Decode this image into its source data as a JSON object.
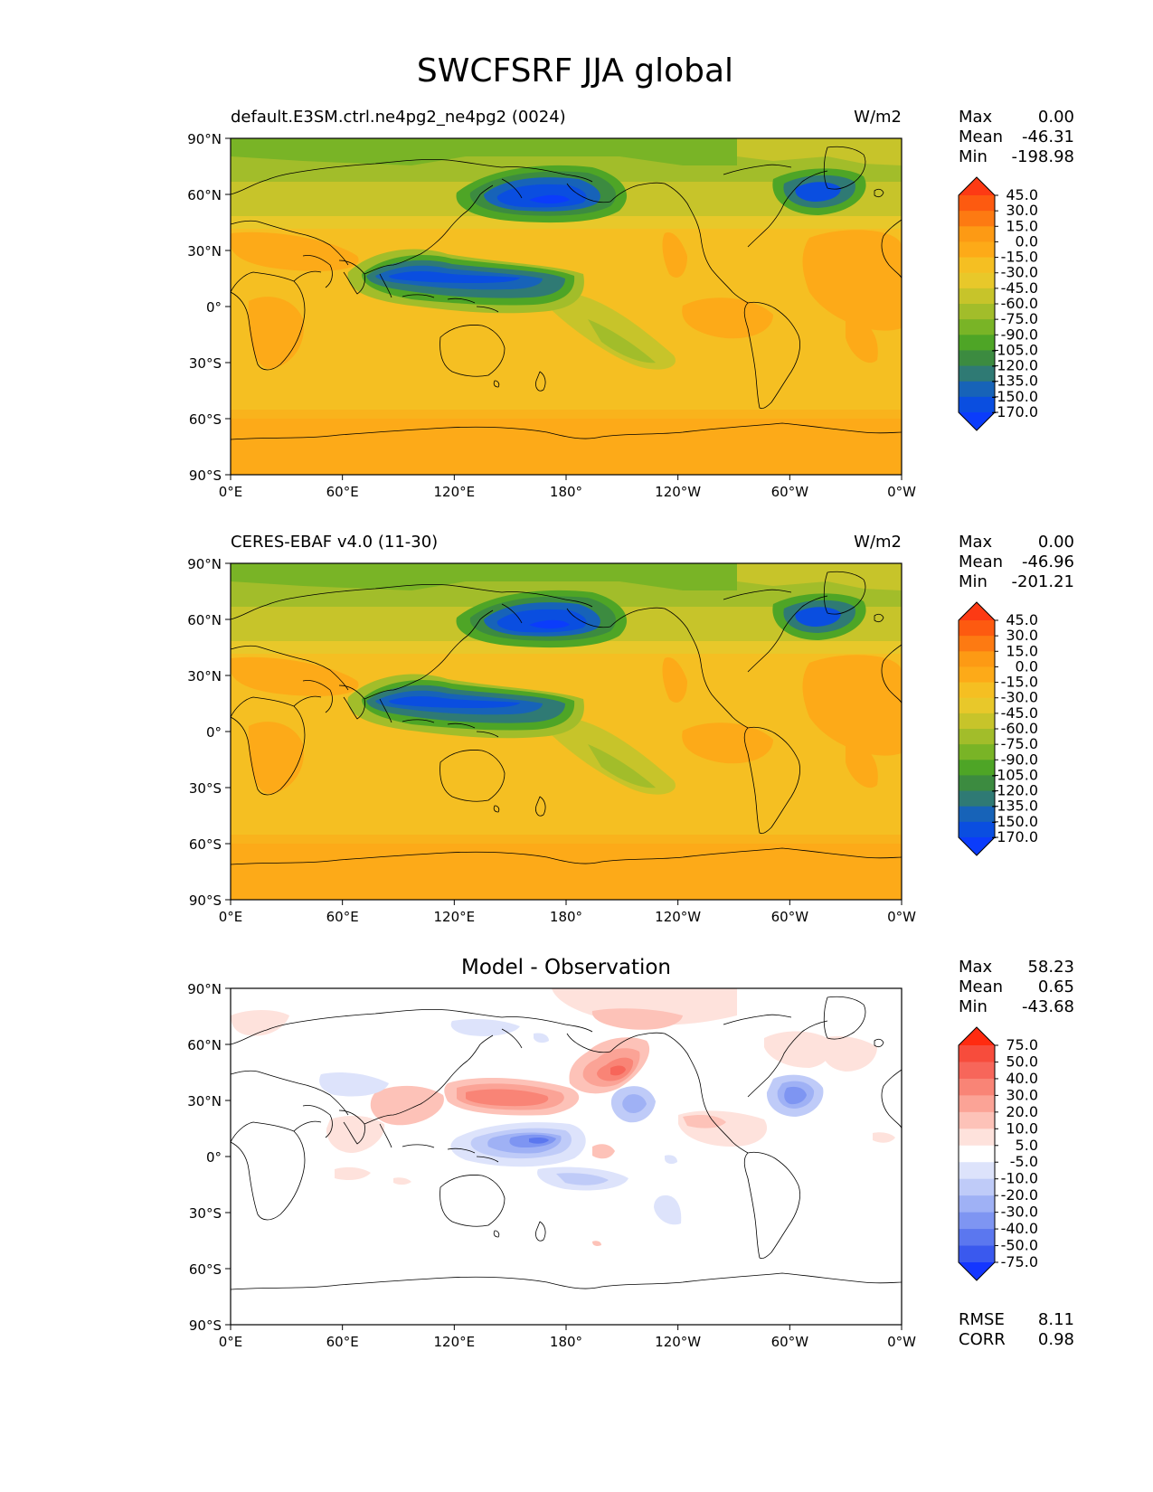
{
  "figure": {
    "title": "SWCFSRF JJA global"
  },
  "axes": {
    "lat_ticks": [
      "90°N",
      "60°N",
      "30°N",
      "0°",
      "30°S",
      "60°S",
      "90°S"
    ],
    "lon_ticks": [
      "0°E",
      "60°E",
      "120°E",
      "180°",
      "120°W",
      "60°W",
      "0°W"
    ]
  },
  "panels": [
    {
      "id": "model",
      "left_title": "default.E3SM.ctrl.ne4pg2_ne4pg2 (0024)",
      "center_title": "",
      "units": "W/m2",
      "stats": [
        {
          "label": "Max",
          "value": "0.00"
        },
        {
          "label": "Mean",
          "value": "-46.31"
        },
        {
          "label": "Min",
          "value": "-198.98"
        }
      ],
      "colorbar": {
        "labels": [
          "45.0",
          "30.0",
          "15.0",
          "0.0",
          "-15.0",
          "-30.0",
          "-45.0",
          "-60.0",
          "-75.0",
          "-90.0",
          "-105.0",
          "-120.0",
          "-135.0",
          "-150.0",
          "-170.0"
        ],
        "colors": [
          "#fd3a14",
          "#fd5a10",
          "#fd7a12",
          "#fd9a14",
          "#fdaa18",
          "#f5bf22",
          "#e8c82a",
          "#c7c42a",
          "#a2bd2a",
          "#79b426",
          "#4ea526",
          "#3c8b40",
          "#2f7a74",
          "#1763b8",
          "#0a4ee0",
          "#0b3cfb"
        ]
      },
      "stats_extra": []
    },
    {
      "id": "obs",
      "left_title": "CERES-EBAF v4.0 (11-30)",
      "center_title": "",
      "units": "W/m2",
      "stats": [
        {
          "label": "Max",
          "value": "0.00"
        },
        {
          "label": "Mean",
          "value": "-46.96"
        },
        {
          "label": "Min",
          "value": "-201.21"
        }
      ],
      "colorbar": {
        "labels": [
          "45.0",
          "30.0",
          "15.0",
          "0.0",
          "-15.0",
          "-30.0",
          "-45.0",
          "-60.0",
          "-75.0",
          "-90.0",
          "-105.0",
          "-120.0",
          "-135.0",
          "-150.0",
          "-170.0"
        ],
        "colors": [
          "#fd3a14",
          "#fd5a10",
          "#fd7a12",
          "#fd9a14",
          "#fdaa18",
          "#f5bf22",
          "#e8c82a",
          "#c7c42a",
          "#a2bd2a",
          "#79b426",
          "#4ea526",
          "#3c8b40",
          "#2f7a74",
          "#1763b8",
          "#0a4ee0",
          "#0b3cfb"
        ]
      },
      "stats_extra": []
    },
    {
      "id": "diff",
      "left_title": "",
      "center_title": "Model - Observation",
      "units": "",
      "stats": [
        {
          "label": "Max",
          "value": "58.23"
        },
        {
          "label": "Mean",
          "value": "0.65"
        },
        {
          "label": "Min",
          "value": "-43.68"
        }
      ],
      "colorbar": {
        "labels": [
          "75.0",
          "50.0",
          "40.0",
          "30.0",
          "20.0",
          "10.0",
          "5.0",
          "-5.0",
          "-10.0",
          "-20.0",
          "-30.0",
          "-40.0",
          "-50.0",
          "-75.0"
        ],
        "colors": [
          "#ff2b10",
          "#f74c3c",
          "#f7665a",
          "#f98476",
          "#fba396",
          "#fdc2b8",
          "#fee2dc",
          "#ffffff",
          "#dde3fb",
          "#bfcbf8",
          "#9fb1f5",
          "#7e95f2",
          "#5b77ef",
          "#3a59ee",
          "#1436ff"
        ]
      },
      "stats_extra": [
        {
          "label": "RMSE",
          "value": "8.11"
        },
        {
          "label": "CORR",
          "value": "0.98"
        }
      ]
    }
  ]
}
